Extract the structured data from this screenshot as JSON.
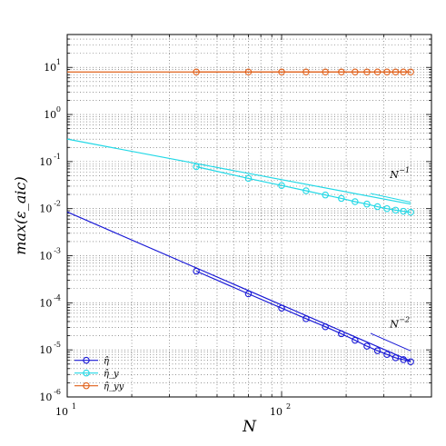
{
  "chart_data": {
    "type": "line",
    "xlabel": "N",
    "ylabel": "max(ε_aic)",
    "xscale": "log",
    "yscale": "log",
    "xlim": [
      10,
      500
    ],
    "ylim": [
      1e-06,
      50
    ],
    "grid": true,
    "legend_position": "bottom-left",
    "x_ticks": [
      {
        "base": "10",
        "exp": "1",
        "value": 10
      },
      {
        "base": "10",
        "exp": "2",
        "value": 100
      }
    ],
    "y_ticks": [
      {
        "base": "10",
        "exp": "-6",
        "value": 1e-06
      },
      {
        "base": "10",
        "exp": "-5",
        "value": 1e-05
      },
      {
        "base": "10",
        "exp": "-4",
        "value": 0.0001
      },
      {
        "base": "10",
        "exp": "-3",
        "value": 0.001
      },
      {
        "base": "10",
        "exp": "-2",
        "value": 0.01
      },
      {
        "base": "10",
        "exp": "-1",
        "value": 0.1
      },
      {
        "base": "10",
        "exp": "0",
        "value": 1
      },
      {
        "base": "10",
        "exp": "1",
        "value": 10
      }
    ],
    "series": [
      {
        "name": "η̂",
        "color": "#1a1ad6",
        "x": [
          40,
          70,
          100,
          130,
          160,
          190,
          220,
          250,
          280,
          310,
          340,
          370,
          400
        ],
        "y": [
          0.00047,
          0.000155,
          7.7e-05,
          4.6e-05,
          3.1e-05,
          2.2e-05,
          1.6e-05,
          1.2e-05,
          9.6e-06,
          8e-06,
          6.8e-06,
          6.2e-06,
          5.6e-06
        ],
        "fit": {
          "x": [
            10,
            400
          ],
          "y": [
            0.0085,
            5.8e-06
          ]
        }
      },
      {
        "name": "η̂_y",
        "color": "#22d8e6",
        "x": [
          40,
          70,
          100,
          130,
          160,
          190,
          220,
          250,
          280,
          310,
          340,
          370,
          400
        ],
        "y": [
          0.078,
          0.044,
          0.031,
          0.024,
          0.0195,
          0.0165,
          0.0141,
          0.0125,
          0.011,
          0.01,
          0.0093,
          0.0088,
          0.0084
        ],
        "fit": {
          "x": [
            10,
            400
          ],
          "y": [
            0.3,
            0.0125
          ]
        }
      },
      {
        "name": "η̂_yy",
        "color": "#e0601a",
        "x": [
          40,
          70,
          100,
          130,
          160,
          190,
          220,
          250,
          280,
          310,
          340,
          370,
          400
        ],
        "y": [
          8,
          8,
          8,
          8,
          8,
          8,
          8,
          8,
          8,
          8,
          8,
          8,
          8
        ],
        "fit": {
          "x": [
            10,
            400
          ],
          "y": [
            8,
            8
          ]
        }
      }
    ],
    "annotations": [
      {
        "base": "N",
        "exp": "−1",
        "x": 320,
        "y": 0.045,
        "ref_line": {
          "x": [
            260,
            400
          ],
          "y": [
            0.021,
            0.0137
          ]
        }
      },
      {
        "base": "N",
        "exp": "−2",
        "x": 320,
        "y": 3e-05,
        "ref_line": {
          "x": [
            260,
            400
          ],
          "y": [
            2.25e-05,
            9.5e-06
          ]
        }
      }
    ]
  }
}
